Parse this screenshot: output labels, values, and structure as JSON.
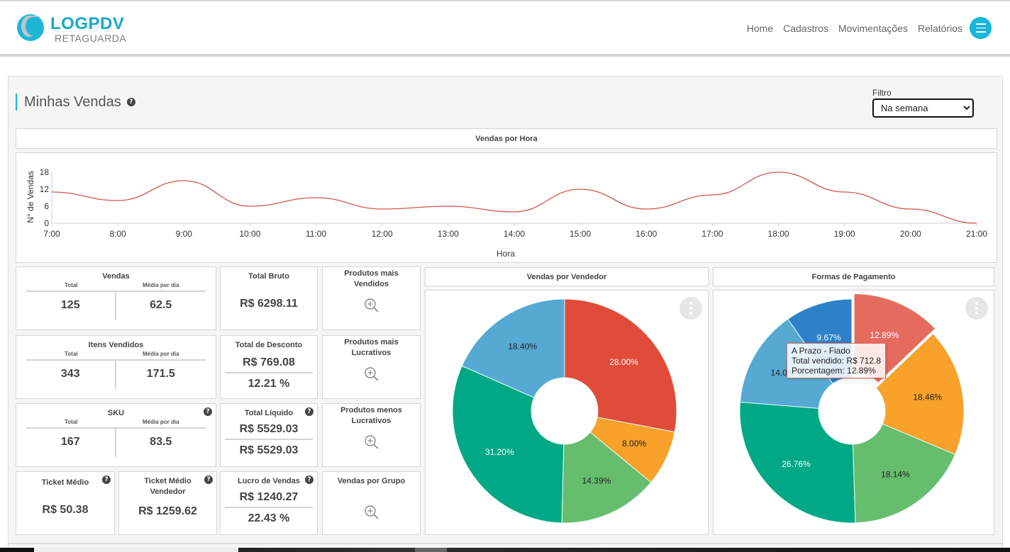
{
  "header": {
    "logo_title": "LOGPDV",
    "logo_subtitle": "RETAGUARDA",
    "nav": [
      "Home",
      "Cadastros",
      "Movimentações",
      "Relatórios"
    ],
    "menu_icon": "hamburger-icon"
  },
  "page": {
    "title": "Minhas Vendas",
    "help_icon": "question-circle-icon",
    "filter": {
      "label": "Filtro",
      "selected": "Na semana"
    }
  },
  "line_card": {
    "title": "Vendas por Hora"
  },
  "kpis": {
    "vendas": {
      "title": "Vendas",
      "total_label": "Total",
      "avg_label": "Média por dia",
      "total": "125",
      "avg": "62.5"
    },
    "itens": {
      "title": "Itens Vendidos",
      "total_label": "Total",
      "avg_label": "Média por dia",
      "total": "343",
      "avg": "171.5"
    },
    "sku": {
      "title": "SKU",
      "total_label": "Total",
      "avg_label": "Média por dia",
      "total": "167",
      "avg": "83.5"
    },
    "ticket_medio": {
      "title": "Ticket Médio",
      "value": "R$ 50.38"
    },
    "ticket_vendedor": {
      "title": "Ticket Médio Vendedor",
      "value": "R$ 1259.62"
    },
    "total_bruto": {
      "title": "Total Bruto",
      "value": "R$ 6298.11"
    },
    "total_desconto": {
      "title": "Total de Desconto",
      "value": "R$ 769.08",
      "percent": "12.21 %"
    },
    "total_liquido": {
      "title": "Total Líquido",
      "value": "R$ 5529.03",
      "value2": "R$ 5529.03"
    },
    "lucro": {
      "title": "Lucro de Vendas",
      "value": "R$ 1240.27",
      "percent": "22.43 %"
    }
  },
  "reports": [
    {
      "title": "Produtos mais Vendidos"
    },
    {
      "title": "Produtos mais Lucrativos"
    },
    {
      "title": "Produtos menos Lucrativos"
    },
    {
      "title": "Vendas por Grupo"
    }
  ],
  "tooltip": {
    "name": "A Prazo - Fiado",
    "total": "Total vendido: R$ 712.8",
    "percent": "Porcentagem: 12.89%"
  },
  "chart_data": [
    {
      "type": "line",
      "title": "Vendas por Hora",
      "xlabel": "Hora",
      "ylabel": "N° de Vendas",
      "x": [
        "7:00",
        "8:00",
        "9:00",
        "10:00",
        "11:00",
        "12:00",
        "13:00",
        "14:00",
        "15:00",
        "16:00",
        "17:00",
        "18:00",
        "19:00",
        "20:00",
        "21:00"
      ],
      "values": [
        11,
        8,
        15,
        6,
        9,
        5,
        6,
        4,
        12,
        5,
        10,
        18,
        11,
        5,
        0
      ],
      "yticks": [
        0,
        6,
        12,
        18
      ],
      "ylim": [
        0,
        18
      ],
      "color": "#d0574a",
      "grid": false
    },
    {
      "type": "pie",
      "title": "Vendas por Vendedor",
      "labels": [
        "28.00%",
        "8.00%",
        "14.39%",
        "31.20%",
        "18.40%"
      ],
      "values": [
        28.0,
        8.0,
        14.39,
        31.2,
        18.4
      ],
      "colors": [
        "#e04b3a",
        "#f8a12b",
        "#66bd6e",
        "#00a886",
        "#55a9d3"
      ],
      "label_colors": [
        "#ffffff",
        "#222222",
        "#222222",
        "#ffffff",
        "#222222"
      ]
    },
    {
      "type": "pie",
      "title": "Formas de Pagamento",
      "labels": [
        "12.89%",
        "18.46%",
        "18.14%",
        "26.76%",
        "14.06%",
        "9.67%"
      ],
      "values": [
        12.89,
        18.46,
        18.14,
        26.76,
        14.06,
        9.67
      ],
      "colors": [
        "#e66b5f",
        "#f8a12b",
        "#66bd6e",
        "#00a886",
        "#55a9d3",
        "#2d81c8"
      ],
      "label_colors": [
        "#ffffff",
        "#222222",
        "#222222",
        "#ffffff",
        "#222222",
        "#ffffff"
      ],
      "highlighted": "A Prazo - Fiado"
    }
  ]
}
